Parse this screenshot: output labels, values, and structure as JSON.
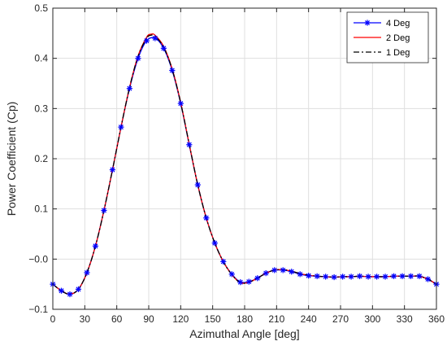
{
  "chart_data": {
    "type": "line",
    "xlabel": "Azimuthal Angle [deg]",
    "ylabel": "Power Coefficient (Cp)",
    "xlim": [
      0,
      360
    ],
    "ylim": [
      -0.1,
      0.5
    ],
    "xticks": [
      0,
      30,
      60,
      90,
      120,
      150,
      180,
      210,
      240,
      270,
      300,
      330,
      360
    ],
    "yticks": [
      -0.1,
      0.0,
      0.1,
      0.2,
      0.3,
      0.4,
      0.5
    ],
    "ytick_labels": [
      "−0.1",
      "−0.0",
      "0.1",
      "0.2",
      "0.3",
      "0.4",
      "0.5"
    ],
    "grid": true,
    "legend_position": "top-right",
    "series": [
      {
        "name": "4 Deg",
        "color": "#0000ff",
        "line_style": "solid",
        "marker": "asterisk",
        "x": [
          0,
          8,
          16,
          24,
          32,
          40,
          48,
          56,
          64,
          72,
          80,
          88,
          96,
          104,
          112,
          120,
          128,
          136,
          144,
          152,
          160,
          168,
          176,
          184,
          192,
          200,
          208,
          216,
          224,
          232,
          240,
          248,
          256,
          264,
          272,
          280,
          288,
          296,
          304,
          312,
          320,
          328,
          336,
          344,
          352,
          360
        ],
        "y": [
          -0.05,
          -0.063,
          -0.07,
          -0.06,
          -0.027,
          0.026,
          0.097,
          0.178,
          0.263,
          0.34,
          0.4,
          0.435,
          0.44,
          0.42,
          0.376,
          0.31,
          0.228,
          0.148,
          0.082,
          0.032,
          -0.005,
          -0.03,
          -0.046,
          -0.045,
          -0.038,
          -0.028,
          -0.022,
          -0.022,
          -0.025,
          -0.03,
          -0.033,
          -0.034,
          -0.035,
          -0.036,
          -0.035,
          -0.035,
          -0.034,
          -0.035,
          -0.035,
          -0.035,
          -0.034,
          -0.034,
          -0.034,
          -0.034,
          -0.04,
          -0.05
        ]
      },
      {
        "name": "2 Deg",
        "color": "#ff0000",
        "line_style": "solid",
        "x": [
          0,
          8,
          16,
          24,
          32,
          40,
          48,
          56,
          64,
          72,
          80,
          88,
          92,
          96,
          104,
          112,
          120,
          128,
          136,
          144,
          152,
          160,
          168,
          176,
          184,
          192,
          200,
          208,
          216,
          224,
          232,
          240,
          248,
          256,
          264,
          272,
          280,
          288,
          296,
          304,
          312,
          320,
          328,
          336,
          344,
          352,
          360
        ],
        "y": [
          -0.05,
          -0.063,
          -0.07,
          -0.06,
          -0.027,
          0.026,
          0.097,
          0.178,
          0.263,
          0.342,
          0.405,
          0.442,
          0.448,
          0.446,
          0.424,
          0.379,
          0.312,
          0.229,
          0.148,
          0.082,
          0.032,
          -0.005,
          -0.031,
          -0.047,
          -0.046,
          -0.038,
          -0.028,
          -0.022,
          -0.021,
          -0.024,
          -0.029,
          -0.032,
          -0.034,
          -0.035,
          -0.036,
          -0.035,
          -0.035,
          -0.034,
          -0.035,
          -0.035,
          -0.035,
          -0.034,
          -0.034,
          -0.034,
          -0.034,
          -0.04,
          -0.05
        ]
      },
      {
        "name": "1 Deg",
        "color": "#000000",
        "line_style": "dashdot",
        "x": [
          0,
          8,
          16,
          24,
          32,
          40,
          48,
          56,
          64,
          72,
          80,
          88,
          92,
          96,
          104,
          112,
          120,
          128,
          136,
          144,
          152,
          160,
          168,
          176,
          184,
          192,
          200,
          208,
          216,
          224,
          232,
          240,
          248,
          256,
          264,
          272,
          280,
          288,
          296,
          304,
          312,
          320,
          328,
          336,
          344,
          352,
          360
        ],
        "y": [
          -0.05,
          -0.063,
          -0.07,
          -0.06,
          -0.027,
          0.026,
          0.097,
          0.178,
          0.263,
          0.342,
          0.404,
          0.44,
          0.446,
          0.444,
          0.422,
          0.378,
          0.311,
          0.229,
          0.148,
          0.082,
          0.032,
          -0.005,
          -0.031,
          -0.047,
          -0.046,
          -0.038,
          -0.028,
          -0.022,
          -0.021,
          -0.024,
          -0.029,
          -0.032,
          -0.034,
          -0.035,
          -0.036,
          -0.035,
          -0.035,
          -0.034,
          -0.035,
          -0.035,
          -0.035,
          -0.034,
          -0.034,
          -0.034,
          -0.034,
          -0.04,
          -0.05
        ]
      }
    ]
  }
}
